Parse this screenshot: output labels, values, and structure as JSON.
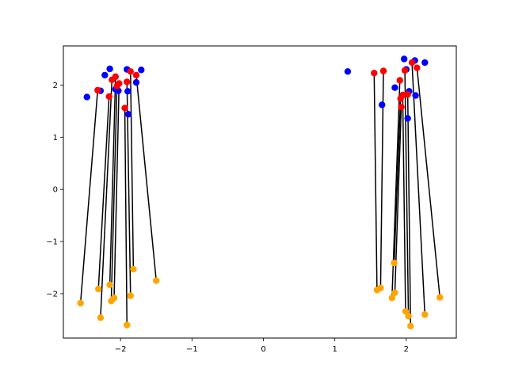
{
  "chart_data": {
    "type": "scatter",
    "title": "",
    "xlabel": "",
    "ylabel": "",
    "xlim": [
      -2.8,
      2.7
    ],
    "ylim": [
      -2.85,
      2.75
    ],
    "grid": false,
    "legend": false,
    "xticks": [
      -2,
      -1,
      0,
      1,
      2
    ],
    "xtick_labels": [
      "−2",
      "−1",
      "0",
      "1",
      "2"
    ],
    "yticks": [
      -2,
      -1,
      0,
      1,
      2
    ],
    "ytick_labels": [
      "−2",
      "−1",
      "0",
      "1",
      "2"
    ],
    "colors": {
      "blue": "#0000ff",
      "red": "#ff0000",
      "orange": "#ffa500",
      "line": "#000000"
    },
    "series": [
      {
        "color": "blue",
        "points": [
          [
            -2.47,
            1.77
          ],
          [
            -2.28,
            1.89
          ],
          [
            -2.22,
            2.19
          ],
          [
            -2.15,
            2.31
          ],
          [
            -2.07,
            1.92
          ],
          [
            -2.03,
            1.89
          ],
          [
            -1.91,
            2.3
          ],
          [
            -1.9,
            1.88
          ],
          [
            -1.89,
            1.44
          ],
          [
            -1.78,
            2.05
          ],
          [
            -1.71,
            2.29
          ],
          [
            1.18,
            2.26
          ],
          [
            1.66,
            1.62
          ],
          [
            1.84,
            1.95
          ],
          [
            1.97,
            2.5
          ],
          [
            2.0,
            2.3
          ],
          [
            2.02,
            1.36
          ],
          [
            2.04,
            1.88
          ],
          [
            2.13,
            1.8
          ],
          [
            2.12,
            2.47
          ],
          [
            2.26,
            2.43
          ]
        ]
      },
      {
        "color": "red",
        "points": [
          [
            -2.32,
            1.9
          ],
          [
            -2.16,
            1.78
          ],
          [
            -2.12,
            2.1
          ],
          [
            -2.07,
            2.16
          ],
          [
            -2.05,
            1.98
          ],
          [
            -2.02,
            2.03
          ],
          [
            -1.94,
            1.56
          ],
          [
            -1.91,
            2.06
          ],
          [
            -1.86,
            2.26
          ],
          [
            -1.78,
            2.19
          ],
          [
            1.55,
            2.23
          ],
          [
            1.68,
            2.27
          ],
          [
            1.91,
            2.09
          ],
          [
            1.92,
            1.74
          ],
          [
            1.93,
            1.58
          ],
          [
            1.95,
            1.81
          ],
          [
            1.98,
            2.28
          ],
          [
            2.02,
            1.82
          ],
          [
            2.08,
            2.43
          ],
          [
            2.15,
            2.33
          ]
        ]
      },
      {
        "color": "orange",
        "points": [
          [
            -2.56,
            -2.18
          ],
          [
            -2.31,
            -1.91
          ],
          [
            -2.28,
            -2.46
          ],
          [
            -2.15,
            -1.83
          ],
          [
            -2.13,
            -2.14
          ],
          [
            -2.09,
            -2.08
          ],
          [
            -1.91,
            -2.6
          ],
          [
            -1.86,
            -2.04
          ],
          [
            -1.82,
            -1.53
          ],
          [
            -1.5,
            -1.75
          ],
          [
            1.59,
            -1.93
          ],
          [
            1.64,
            -1.89
          ],
          [
            1.8,
            -2.08
          ],
          [
            1.83,
            -1.41
          ],
          [
            1.84,
            -1.98
          ],
          [
            1.99,
            -2.34
          ],
          [
            2.03,
            -2.43
          ],
          [
            2.06,
            -2.62
          ],
          [
            2.26,
            -2.4
          ],
          [
            2.47,
            -2.07
          ]
        ]
      }
    ],
    "segments": [
      [
        [
          -2.32,
          1.9
        ],
        [
          -2.56,
          -2.18
        ]
      ],
      [
        [
          -2.16,
          1.78
        ],
        [
          -2.31,
          -1.91
        ]
      ],
      [
        [
          -2.12,
          2.1
        ],
        [
          -2.28,
          -2.46
        ]
      ],
      [
        [
          -2.07,
          2.16
        ],
        [
          -2.15,
          -1.83
        ]
      ],
      [
        [
          -2.05,
          1.98
        ],
        [
          -2.13,
          -2.14
        ]
      ],
      [
        [
          -2.02,
          2.03
        ],
        [
          -2.09,
          -2.08
        ]
      ],
      [
        [
          -1.94,
          1.56
        ],
        [
          -1.91,
          -2.6
        ]
      ],
      [
        [
          -1.91,
          2.06
        ],
        [
          -1.86,
          -2.04
        ]
      ],
      [
        [
          -1.86,
          2.26
        ],
        [
          -1.82,
          -1.53
        ]
      ],
      [
        [
          -1.78,
          2.19
        ],
        [
          -1.5,
          -1.75
        ]
      ],
      [
        [
          1.55,
          2.23
        ],
        [
          1.59,
          -1.93
        ]
      ],
      [
        [
          1.68,
          2.27
        ],
        [
          1.64,
          -1.89
        ]
      ],
      [
        [
          1.91,
          2.09
        ],
        [
          1.8,
          -2.08
        ]
      ],
      [
        [
          1.92,
          1.74
        ],
        [
          1.83,
          -1.41
        ]
      ],
      [
        [
          1.93,
          1.58
        ],
        [
          1.84,
          -1.98
        ]
      ],
      [
        [
          1.95,
          1.81
        ],
        [
          1.99,
          -2.34
        ]
      ],
      [
        [
          1.98,
          2.28
        ],
        [
          2.03,
          -2.43
        ]
      ],
      [
        [
          2.02,
          1.82
        ],
        [
          2.06,
          -2.62
        ]
      ],
      [
        [
          2.08,
          2.43
        ],
        [
          2.26,
          -2.4
        ]
      ],
      [
        [
          2.15,
          2.33
        ],
        [
          2.47,
          -2.07
        ]
      ]
    ]
  }
}
